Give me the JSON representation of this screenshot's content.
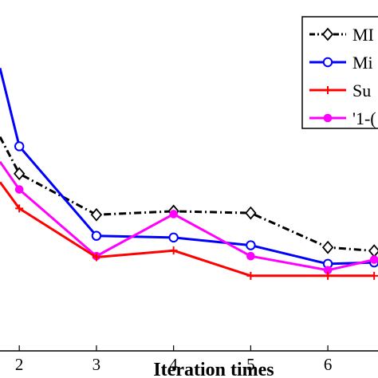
{
  "chart_data": {
    "type": "line",
    "title": "",
    "xlabel": "Iteration times",
    "ylabel": "",
    "x_ticks": [
      "2",
      "3",
      "4",
      "5",
      "6"
    ],
    "xlim": [
      1.75,
      6.65
    ],
    "ylim": [
      0,
      1
    ],
    "grid": false,
    "legend_position": "top-right",
    "series": [
      {
        "name": "MI",
        "color": "#000000",
        "line_style": "dash-dot",
        "marker": "diamond",
        "x": [
          1.75,
          2,
          3,
          4,
          5,
          6,
          6.6
        ],
        "y": [
          0.61,
          0.505,
          0.388,
          0.398,
          0.393,
          0.295,
          0.285
        ]
      },
      {
        "name": "Mi",
        "color": "#0000ff",
        "line_style": "solid",
        "marker": "circle",
        "x": [
          1.75,
          2,
          3,
          4,
          5,
          6,
          6.6
        ],
        "y": [
          0.806,
          0.583,
          0.328,
          0.323,
          0.301,
          0.248,
          0.252
        ]
      },
      {
        "name": "Su",
        "color": "#ff0000",
        "line_style": "solid",
        "marker": "plus",
        "x": [
          1.75,
          2,
          3,
          4,
          5,
          6,
          6.6
        ],
        "y": [
          0.481,
          0.406,
          0.267,
          0.286,
          0.214,
          0.214,
          0.214
        ]
      },
      {
        "name": "'1-(",
        "color": "#ff00ff",
        "line_style": "solid",
        "marker": "circle-filled",
        "x": [
          1.75,
          2,
          3,
          4,
          5,
          6,
          6.6
        ],
        "y": [
          0.539,
          0.46,
          0.27,
          0.39,
          0.27,
          0.23,
          0.26
        ]
      }
    ]
  }
}
